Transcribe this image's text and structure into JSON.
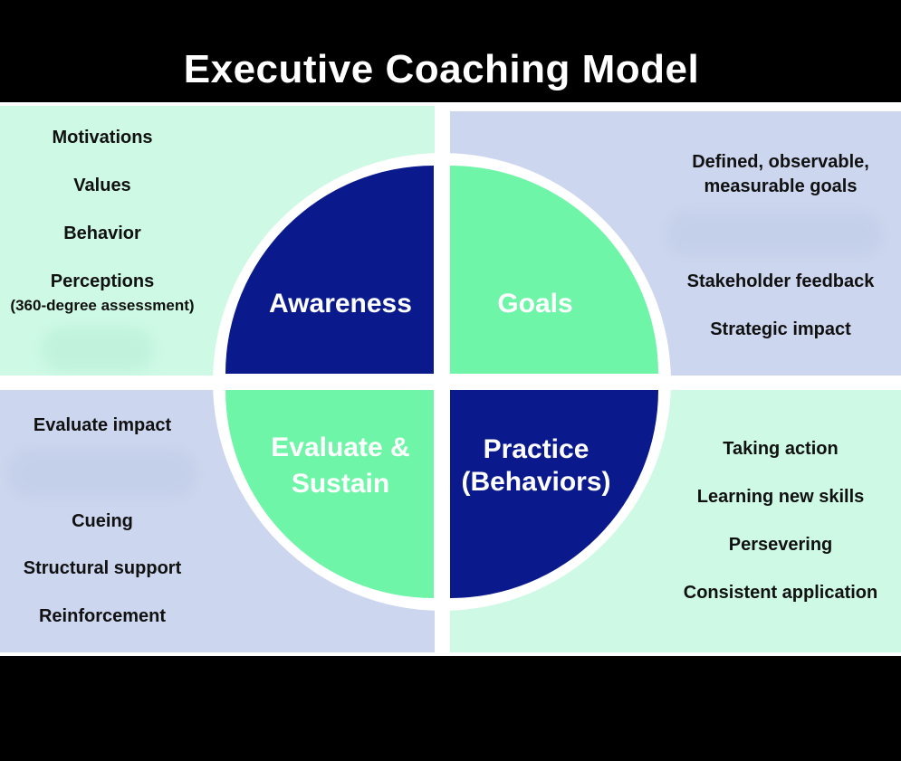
{
  "title": "Executive Coaching Model",
  "colors": {
    "dark_blue": "#0a1a8c",
    "mint_green": "#6ff5a8",
    "light_green_bg": "#cdf9e5",
    "light_blue_bg": "#ccd6ee"
  },
  "segments": {
    "awareness": {
      "label": "Awareness"
    },
    "goals": {
      "label": "Goals"
    },
    "evaluate": {
      "line1": "Evaluate &",
      "line2": "Sustain"
    },
    "practice": {
      "line1": "Practice",
      "line2": "(Behaviors)"
    }
  },
  "awareness_items": {
    "motivations": "Motivations",
    "values": "Values",
    "behavior": "Behavior",
    "perceptions": "Perceptions",
    "perceptions_note": "(360-degree assessment)"
  },
  "goals_items": {
    "defined_goals": "Defined, observable, measurable goals",
    "stakeholder": "Stakeholder feedback",
    "strategic": "Strategic impact"
  },
  "evaluate_items": {
    "impact": "Evaluate impact",
    "cueing": "Cueing",
    "structural": "Structural support",
    "reinforcement": "Reinforcement"
  },
  "practice_items": {
    "action": "Taking action",
    "skills": "Learning new skills",
    "persevering": "Persevering",
    "consistent": "Consistent application"
  }
}
